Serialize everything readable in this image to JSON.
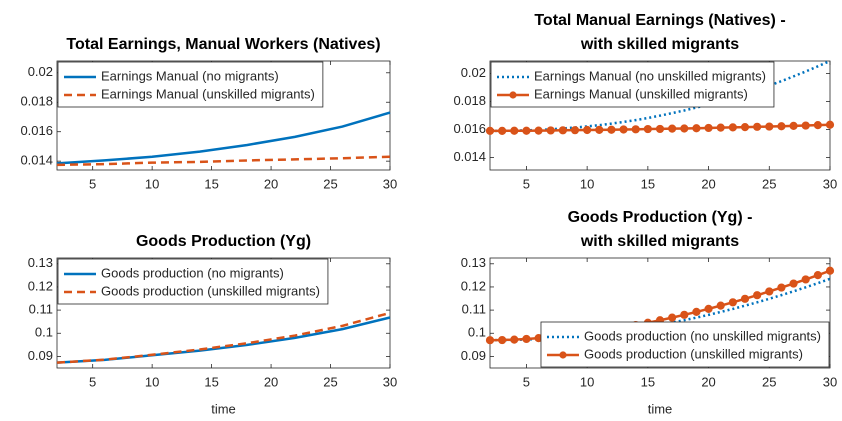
{
  "chart_data": [
    {
      "type": "line",
      "title": "Total Earnings, Manual Workers (Natives)",
      "x": [
        2,
        6,
        10,
        14,
        18,
        22,
        26,
        30
      ],
      "series": [
        {
          "name": "Earnings Manual (no migrants)",
          "color": "#0072BD",
          "line_style": "solid",
          "marker": false,
          "values": [
            0.01385,
            0.01405,
            0.0143,
            0.01465,
            0.0151,
            0.01565,
            0.01635,
            0.0173
          ]
        },
        {
          "name": "Earnings Manual (unskilled migrants)",
          "color": "#D95319",
          "line_style": "dashed",
          "marker": false,
          "values": [
            0.01375,
            0.0138,
            0.0139,
            0.01395,
            0.01405,
            0.01412,
            0.0142,
            0.0143
          ]
        }
      ],
      "xlim": [
        2,
        30
      ],
      "xticks": [
        5,
        10,
        15,
        20,
        25,
        30
      ],
      "ylim": [
        0.0134,
        0.0208
      ],
      "yticks": [
        0.014,
        0.016,
        0.018,
        0.02
      ],
      "legend": "northwest"
    },
    {
      "type": "line",
      "title": [
        "Total Manual Earnings (Natives) -",
        "with skilled migrants"
      ],
      "x": [
        2,
        3,
        4,
        5,
        6,
        7,
        8,
        9,
        10,
        11,
        12,
        13,
        14,
        15,
        16,
        17,
        18,
        19,
        20,
        21,
        22,
        23,
        24,
        25,
        26,
        27,
        28,
        29,
        30
      ],
      "series": [
        {
          "name": "Earnings Manual (no unskilled migrants)",
          "color": "#0072BD",
          "line_style": "dotted",
          "marker": false,
          "values": [
            0.0159,
            0.0159,
            0.01592,
            0.01594,
            0.01597,
            0.01601,
            0.01607,
            0.01614,
            0.01622,
            0.01631,
            0.01642,
            0.01654,
            0.01667,
            0.01682,
            0.01699,
            0.01717,
            0.01736,
            0.01757,
            0.01779,
            0.01803,
            0.01829,
            0.01857,
            0.01884,
            0.01914,
            0.01946,
            0.0198,
            0.02015,
            0.02052,
            0.0209
          ]
        },
        {
          "name": "Earnings Manual (unskilled migrants)",
          "color": "#D95319",
          "line_style": "solid",
          "marker": true,
          "values": [
            0.0159,
            0.0159,
            0.01591,
            0.01591,
            0.01592,
            0.01593,
            0.01594,
            0.01595,
            0.01596,
            0.01597,
            0.01598,
            0.016,
            0.01601,
            0.01603,
            0.01604,
            0.01606,
            0.01607,
            0.01609,
            0.01611,
            0.01613,
            0.01615,
            0.01617,
            0.01619,
            0.01621,
            0.01623,
            0.01626,
            0.01628,
            0.01631,
            0.01634
          ]
        }
      ],
      "xlim": [
        2,
        30
      ],
      "xticks": [
        5,
        10,
        15,
        20,
        25,
        30
      ],
      "ylim": [
        0.0131,
        0.0209
      ],
      "yticks": [
        0.014,
        0.016,
        0.018,
        0.02
      ],
      "legend": "northwest"
    },
    {
      "type": "line",
      "title": "Goods Production (Yg)",
      "xlabel": "time",
      "x": [
        2,
        6,
        10,
        14,
        18,
        22,
        26,
        30
      ],
      "series": [
        {
          "name": "Goods production (no migrants)",
          "color": "#0072BD",
          "line_style": "solid",
          "marker": false,
          "values": [
            0.0873,
            0.0885,
            0.0905,
            0.0925,
            0.095,
            0.098,
            0.1018,
            0.1068
          ]
        },
        {
          "name": "Goods production (unskilled migrants)",
          "color": "#D95319",
          "line_style": "dashed",
          "marker": false,
          "values": [
            0.0873,
            0.0886,
            0.0907,
            0.093,
            0.0957,
            0.099,
            0.1032,
            0.1088
          ]
        }
      ],
      "xlim": [
        2,
        30
      ],
      "xticks": [
        5,
        10,
        15,
        20,
        25,
        30
      ],
      "ylim": [
        0.085,
        0.1325
      ],
      "yticks": [
        0.09,
        0.1,
        0.11,
        0.12,
        0.13
      ],
      "legend": "northwest"
    },
    {
      "type": "line",
      "title": [
        "Goods Production (Yg) -",
        "with skilled migrants"
      ],
      "xlabel": "time",
      "x": [
        2,
        3,
        4,
        5,
        6,
        7,
        8,
        9,
        10,
        11,
        12,
        13,
        14,
        15,
        16,
        17,
        18,
        19,
        20,
        21,
        22,
        23,
        24,
        25,
        26,
        27,
        28,
        29,
        30
      ],
      "series": [
        {
          "name": "Goods production (no unskilled migrants)",
          "color": "#0072BD",
          "line_style": "dotted",
          "marker": false,
          "values": [
            0.097,
            0.09703,
            0.09714,
            0.0973,
            0.09754,
            0.09785,
            0.09822,
            0.09866,
            0.09916,
            0.09974,
            0.10038,
            0.10109,
            0.10187,
            0.10271,
            0.10363,
            0.10461,
            0.10565,
            0.10677,
            0.10795,
            0.1092,
            0.11052,
            0.11191,
            0.11336,
            0.11488,
            0.11647,
            0.11813,
            0.11985,
            0.12164,
            0.1235
          ]
        },
        {
          "name": "Goods production (unskilled migrants)",
          "color": "#D95319",
          "line_style": "solid",
          "marker": true,
          "values": [
            0.097,
            0.09707,
            0.09726,
            0.09754,
            0.0979,
            0.09835,
            0.09888,
            0.09948,
            0.10015,
            0.10089,
            0.1017,
            0.10258,
            0.10353,
            0.10454,
            0.10562,
            0.10675,
            0.10796,
            0.10922,
            0.11054,
            0.11193,
            0.11337,
            0.11487,
            0.11644,
            0.11806,
            0.11974,
            0.12147,
            0.12325,
            0.1251,
            0.127
          ]
        }
      ],
      "xlim": [
        2,
        30
      ],
      "xticks": [
        5,
        10,
        15,
        20,
        25,
        30
      ],
      "ylim": [
        0.085,
        0.1325
      ],
      "yticks": [
        0.09,
        0.1,
        0.11,
        0.12,
        0.13
      ],
      "legend": "southeast"
    }
  ]
}
